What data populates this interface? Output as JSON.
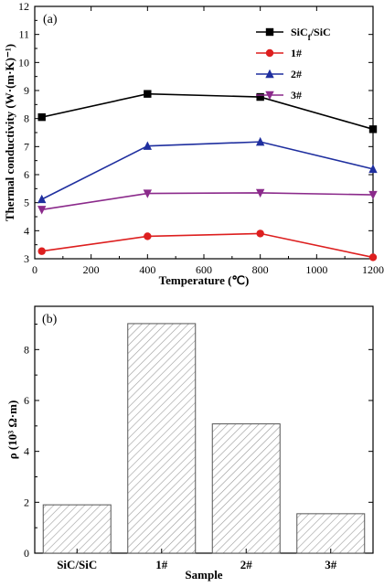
{
  "chart_data": [
    {
      "type": "line",
      "panel_label": "(a)",
      "title": "",
      "xlabel": "Temperature (℃)",
      "ylabel": "Thermal conductivity (W·(m·K)⁻¹)",
      "xlim": [
        0,
        1200
      ],
      "ylim": [
        3,
        12
      ],
      "xticks": [
        0,
        200,
        400,
        600,
        800,
        1000,
        1200
      ],
      "yticks": [
        3,
        4,
        5,
        6,
        7,
        8,
        9,
        10,
        11,
        12
      ],
      "legend_placement": "top-right",
      "grid": false,
      "x": [
        25,
        400,
        800,
        1200
      ],
      "series": [
        {
          "name": "SiCf/SiC",
          "values": [
            8.05,
            8.88,
            8.77,
            7.62
          ],
          "color": "#000000",
          "marker": "square"
        },
        {
          "name": "1#",
          "values": [
            3.27,
            3.8,
            3.9,
            3.05
          ],
          "color": "#dd1f1f",
          "marker": "circle"
        },
        {
          "name": "2#",
          "values": [
            5.12,
            7.02,
            7.17,
            6.2
          ],
          "color": "#1f2f9f",
          "marker": "triangle-up"
        },
        {
          "name": "3#",
          "values": [
            4.75,
            5.33,
            5.35,
            5.28
          ],
          "color": "#8b2a8b",
          "marker": "triangle-down"
        }
      ]
    },
    {
      "type": "bar",
      "panel_label": "(b)",
      "title": "",
      "xlabel": "Sample",
      "ylabel": "ρ (10³ Ω·m)",
      "categories": [
        "SiC/SiC",
        "1#",
        "2#",
        "3#"
      ],
      "values": [
        1.9,
        9.02,
        5.08,
        1.55
      ],
      "ylim": [
        0,
        9.7
      ],
      "yticks": [
        0,
        2,
        4,
        6,
        8
      ],
      "grid": false,
      "bar_fill": "hatched"
    }
  ]
}
